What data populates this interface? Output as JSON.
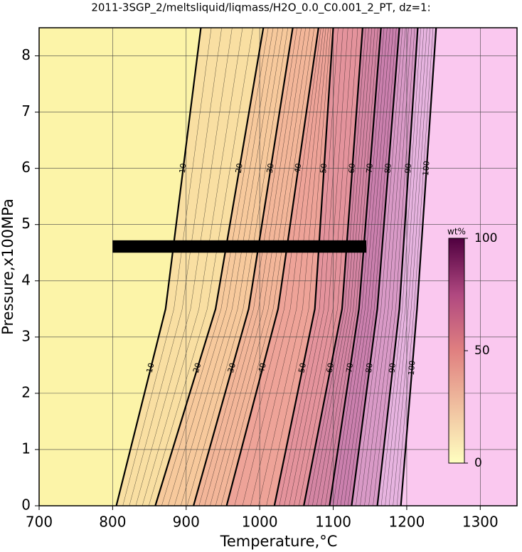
{
  "chart_data": {
    "type": "contour",
    "title": "2011-3SGP_2/meltsliquid/liqmass/H2O_0.0_C0.001_2_PT, dz=1:",
    "x_label": "Temperature,°C",
    "y_label": "Pressure,x100MPa",
    "xlim": [
      700,
      1350
    ],
    "ylim": [
      0,
      8.5
    ],
    "xticks": [
      700,
      800,
      900,
      1000,
      1100,
      1200,
      1300
    ],
    "yticks": [
      0,
      1,
      2,
      3,
      4,
      5,
      6,
      7,
      8
    ],
    "grid": true,
    "y": [
      0,
      3.5,
      8.5
    ],
    "series": [
      {
        "name": "10",
        "values": [
          805,
          872,
          920
        ]
      },
      {
        "name": "20",
        "values": [
          858,
          940,
          1005
        ]
      },
      {
        "name": "30",
        "values": [
          910,
          985,
          1045
        ]
      },
      {
        "name": "40",
        "values": [
          955,
          1025,
          1080
        ]
      },
      {
        "name": "50",
        "values": [
          1020,
          1075,
          1100
        ]
      },
      {
        "name": "60",
        "values": [
          1060,
          1112,
          1140
        ]
      },
      {
        "name": "70",
        "values": [
          1095,
          1135,
          1165
        ]
      },
      {
        "name": "80",
        "values": [
          1125,
          1160,
          1190
        ]
      },
      {
        "name": "90",
        "values": [
          1160,
          1190,
          1215
        ]
      },
      {
        "name": "100",
        "values": [
          1192,
          1214,
          1240
        ]
      }
    ],
    "colormap": [
      "#fcf4a8",
      "#f6c49a",
      "#ec9a98",
      "#c87aa8",
      "#e7b4e0"
    ],
    "above_color": "#fac8ef",
    "colorbar": {
      "label": "wt%",
      "lim": [
        0,
        100
      ],
      "ticks": [
        0,
        50,
        100
      ],
      "colors": [
        "#ffffc0",
        "#f0c0a0",
        "#e08080",
        "#b04880",
        "#500040"
      ]
    }
  }
}
